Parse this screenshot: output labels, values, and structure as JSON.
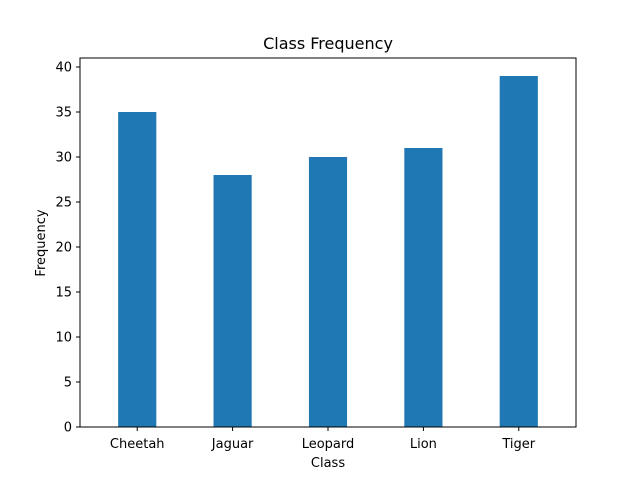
{
  "chart_data": {
    "type": "bar",
    "title": "Class Frequency",
    "xlabel": "Class",
    "ylabel": "Frequency",
    "categories": [
      "Cheetah",
      "Jaguar",
      "Leopard",
      "Lion",
      "Tiger"
    ],
    "values": [
      35,
      28,
      30,
      31,
      39
    ],
    "ylim": [
      0,
      41
    ],
    "yticks": [
      0,
      5,
      10,
      15,
      20,
      25,
      30,
      35,
      40
    ],
    "grid": false,
    "bar_color": "#1f77b4"
  }
}
